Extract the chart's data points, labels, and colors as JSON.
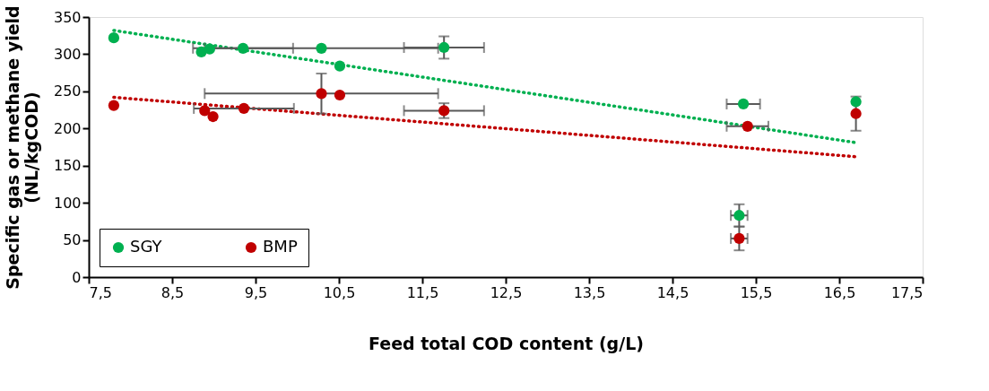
{
  "chart_data": {
    "type": "scatter",
    "xlabel": "Feed total COD content (g/L)",
    "ylabel": "Specific gas or methane yield\n(NL/kgCOD)",
    "xlim": [
      7.5,
      17.5
    ],
    "xticks": [
      {
        "value": 7.5,
        "label": "7,5"
      },
      {
        "value": 8.5,
        "label": "8,5"
      },
      {
        "value": 9.5,
        "label": "9,5"
      },
      {
        "value": 10.5,
        "label": "10,5"
      },
      {
        "value": 11.5,
        "label": "11,5"
      },
      {
        "value": 12.5,
        "label": "12,5"
      },
      {
        "value": 13.5,
        "label": "13,5"
      },
      {
        "value": 14.5,
        "label": "14,5"
      },
      {
        "value": 15.5,
        "label": "15,5"
      },
      {
        "value": 16.5,
        "label": "16,5"
      },
      {
        "value": 17.5,
        "label": "17,5"
      }
    ],
    "ylim": [
      0,
      350
    ],
    "yticks": [
      0,
      50,
      100,
      150,
      200,
      250,
      300,
      350
    ],
    "grid": false,
    "legend": "bottom left",
    "marker": "circle",
    "series": [
      {
        "name": "SGY",
        "color": "#00b050",
        "x": [
          7.8,
          8.85,
          8.95,
          9.35,
          10.29,
          10.51,
          11.76,
          15.35,
          16.7,
          15.3
        ],
        "values": [
          322,
          303,
          307,
          308,
          308,
          284,
          309,
          233,
          236,
          83
        ],
        "errors": [
          null,
          null,
          null,
          null,
          null,
          null,
          15,
          null,
          null,
          15
        ],
        "xerrors": [
          null,
          null,
          null,
          0.6,
          1.4,
          null,
          0.48,
          0.2,
          null,
          0.1
        ]
      },
      {
        "name": "BMP",
        "color": "#c00000",
        "x": [
          7.8,
          8.89,
          8.99,
          9.36,
          10.29,
          10.51,
          11.76,
          15.4,
          16.7,
          15.3
        ],
        "values": [
          231,
          224,
          216,
          227,
          247,
          245,
          224,
          203,
          220,
          52
        ],
        "errors": [
          null,
          null,
          null,
          null,
          27,
          null,
          10,
          null,
          23,
          16
        ],
        "xerrors": [
          null,
          null,
          null,
          0.6,
          1.4,
          null,
          0.48,
          0.25,
          null,
          0.1
        ]
      },
      {
        "type": "line",
        "color": "#00b050",
        "line_style": "dotted",
        "marker": "none",
        "x": [
          7.8,
          16.7
        ],
        "values": [
          332,
          181
        ]
      },
      {
        "type": "line",
        "color": "#c00000",
        "line_style": "dotted",
        "marker": "none",
        "x": [
          7.8,
          16.7
        ],
        "values": [
          242,
          162
        ]
      }
    ]
  }
}
